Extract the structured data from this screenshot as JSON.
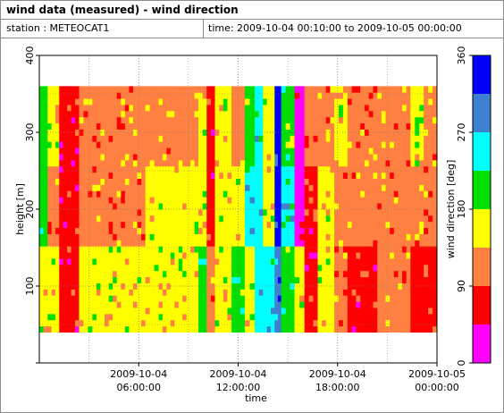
{
  "header": {
    "title": "wind data (measured) - wind direction",
    "station_text": "station : METEOCAT1",
    "time_text": "time: 2009-10-04 00:10:00 to 2009-10-05 00:00:00"
  },
  "colors": {
    "magenta": "#ff00ff",
    "red": "#ff0000",
    "coral": "#ff8040",
    "yellow": "#ffff00",
    "green": "#00e000",
    "cyan": "#00ffff",
    "steelblue": "#4080d0",
    "blue": "#0000ff",
    "grid": "#808080",
    "axis": "#000000"
  },
  "chart_data": {
    "type": "heatmap",
    "xlabel": "time",
    "ylabel": "height [m]",
    "colorbar_label": "wind direction [deg]",
    "x_range": [
      "2009-10-04 00:00:00",
      "2009-10-05 00:00:00"
    ],
    "ylim": [
      0,
      400
    ],
    "y_ticks": [
      100,
      200,
      300,
      400
    ],
    "y_tick_labels": [
      "100",
      "200",
      "300",
      "400"
    ],
    "x_ticks": [
      {
        "value": "2009-10-04 06:00:00",
        "label_date": "2009-10-04",
        "label_time": "06:00:00"
      },
      {
        "value": "2009-10-04 12:00:00",
        "label_date": "2009-10-04",
        "label_time": "12:00:00"
      },
      {
        "value": "2009-10-04 18:00:00",
        "label_date": "2009-10-04",
        "label_time": "18:00:00"
      },
      {
        "value": "2009-10-05 00:00:00",
        "label_date": "2009-10-05",
        "label_time": "00:00:00"
      }
    ],
    "grid": true,
    "height_range_m": [
      40,
      360
    ],
    "colorbar": {
      "range": [
        0,
        360
      ],
      "ticks": [
        0,
        90,
        180,
        270,
        360
      ],
      "bins": [
        {
          "from": 0,
          "to": 45,
          "color": "magenta"
        },
        {
          "from": 45,
          "to": 90,
          "color": "red"
        },
        {
          "from": 90,
          "to": 135,
          "color": "coral"
        },
        {
          "from": 135,
          "to": 180,
          "color": "yellow"
        },
        {
          "from": 180,
          "to": 225,
          "color": "green"
        },
        {
          "from": 225,
          "to": 270,
          "color": "cyan"
        },
        {
          "from": 270,
          "to": 315,
          "color": "steelblue"
        },
        {
          "from": 315,
          "to": 360,
          "color": "blue"
        }
      ]
    },
    "time_segments_hours": [
      {
        "from": 0.0,
        "to": 0.5,
        "low": "yellow",
        "mid": "green",
        "high": "green"
      },
      {
        "from": 0.5,
        "to": 1.2,
        "low": "yellow",
        "mid": "coral",
        "high": "yellow"
      },
      {
        "from": 1.2,
        "to": 2.4,
        "low": "red",
        "mid": "red",
        "high": "red"
      },
      {
        "from": 2.4,
        "to": 3.2,
        "low": "yellow",
        "mid": "coral",
        "high": "coral"
      },
      {
        "from": 3.2,
        "to": 6.4,
        "low": "yellow",
        "mid": "coral",
        "high": "coral"
      },
      {
        "from": 6.4,
        "to": 7.2,
        "low": "yellow",
        "mid": "yellow",
        "high": "coral"
      },
      {
        "from": 7.2,
        "to": 9.6,
        "low": "yellow",
        "mid": "yellow",
        "high": "coral"
      },
      {
        "from": 9.6,
        "to": 10.1,
        "low": "green",
        "mid": "yellow",
        "high": "yellow"
      },
      {
        "from": 10.1,
        "to": 10.6,
        "low": "coral",
        "mid": "red",
        "high": "red"
      },
      {
        "from": 10.6,
        "to": 11.6,
        "low": "yellow",
        "mid": "yellow",
        "high": "yellow"
      },
      {
        "from": 11.6,
        "to": 12.4,
        "low": "green",
        "mid": "yellow",
        "high": "coral"
      },
      {
        "from": 12.4,
        "to": 13.0,
        "low": "yellow",
        "mid": "cyan",
        "high": "green"
      },
      {
        "from": 13.0,
        "to": 13.5,
        "low": "cyan",
        "mid": "cyan",
        "high": "cyan"
      },
      {
        "from": 13.5,
        "to": 14.2,
        "low": "cyan",
        "mid": "yellow",
        "high": "yellow"
      },
      {
        "from": 14.2,
        "to": 14.6,
        "low": "steelblue",
        "mid": "blue",
        "high": "blue"
      },
      {
        "from": 14.6,
        "to": 15.4,
        "low": "green",
        "mid": "cyan",
        "high": "green"
      },
      {
        "from": 15.4,
        "to": 16.0,
        "low": "yellow",
        "mid": "magenta",
        "high": "magenta"
      },
      {
        "from": 16.0,
        "to": 16.8,
        "low": "red",
        "mid": "red",
        "high": "coral"
      },
      {
        "from": 16.8,
        "to": 17.8,
        "low": "yellow",
        "mid": "yellow",
        "high": "coral"
      },
      {
        "from": 17.8,
        "to": 18.6,
        "low": "coral",
        "mid": "coral",
        "high": "yellow"
      },
      {
        "from": 18.6,
        "to": 20.4,
        "low": "red",
        "mid": "coral",
        "high": "coral"
      },
      {
        "from": 20.4,
        "to": 22.4,
        "low": "coral",
        "mid": "coral",
        "high": "coral"
      },
      {
        "from": 22.4,
        "to": 23.2,
        "low": "red",
        "mid": "coral",
        "high": "yellow"
      },
      {
        "from": 23.2,
        "to": 24.0,
        "low": "red",
        "mid": "coral",
        "high": "coral"
      }
    ]
  }
}
